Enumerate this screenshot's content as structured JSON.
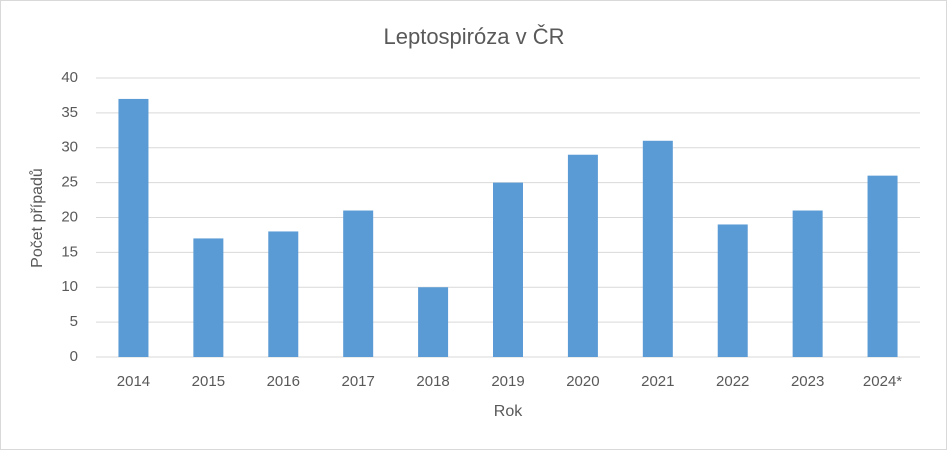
{
  "chart_data": {
    "type": "bar",
    "title": "Leptospiróza v ČR",
    "x_label": "Rok",
    "y_label": "Počet případů",
    "categories": [
      "2014",
      "2015",
      "2016",
      "2017",
      "2018",
      "2019",
      "2020",
      "2021",
      "2022",
      "2023",
      "2024*"
    ],
    "values": [
      37,
      17,
      18,
      21,
      10,
      25,
      29,
      31,
      19,
      21,
      26
    ],
    "color": "#5b9bd5",
    "ylim": [
      0,
      40
    ],
    "yticks": [
      0,
      5,
      10,
      15,
      20,
      25,
      30,
      35,
      40
    ],
    "grid": true
  }
}
